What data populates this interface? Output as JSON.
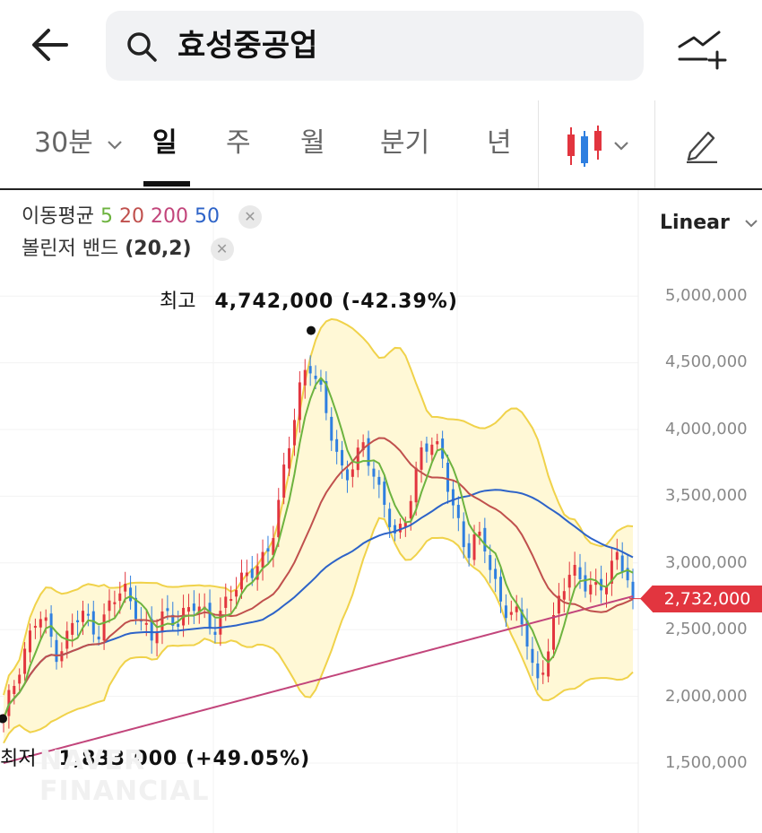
{
  "header": {
    "search_text": "효성중공업"
  },
  "tabs": [
    {
      "label": "30분",
      "has_dropdown": true
    },
    {
      "label": "일",
      "active": true
    },
    {
      "label": "주"
    },
    {
      "label": "월"
    },
    {
      "label": "분기"
    },
    {
      "label": "년"
    }
  ],
  "legend": {
    "ma_label": "이동평균",
    "ma_values": [
      "5",
      "20",
      "200",
      "50"
    ],
    "ma_colors": [
      "#6db33f",
      "#c0504d",
      "#c2457b",
      "#2d63c8"
    ],
    "bb_label": "볼린저 밴드",
    "bb_params": "(20,2)"
  },
  "scale": {
    "label": "Linear"
  },
  "current_price": "2,732,000",
  "annotations": {
    "high_label": "최고",
    "high_value": "4,742,000 (-42.39%)",
    "low_label": "최저",
    "low_value": "1,833,000 (+49.05%)"
  },
  "watermark": [
    "NAVER",
    "FINANCIAL"
  ],
  "chart_data": {
    "type": "candlestick",
    "yscale": "linear",
    "ylim": [
      1300000,
      5200000
    ],
    "y_ticks": [
      "5,000,000",
      "4,500,000",
      "4,000,000",
      "3,500,000",
      "3,000,000",
      "2,500,000",
      "2,000,000",
      "1,500,000"
    ],
    "y_tick_values": [
      5000000,
      4500000,
      4000000,
      3500000,
      3000000,
      2500000,
      2000000,
      1500000
    ],
    "up_color": "#e2353f",
    "down_color": "#2f7fe0",
    "close_path": [
      1830000,
      2050000,
      2300000,
      2450000,
      2600000,
      2500000,
      2350000,
      2400000,
      2550000,
      2600000,
      2550000,
      2500000,
      2650000,
      2750000,
      2800000,
      2700000,
      2500000,
      2400000,
      2600000,
      2650000,
      2550000,
      2600000,
      2700000,
      2650000,
      2500000,
      2600000,
      2750000,
      2900000,
      2950000,
      2950000,
      3000000,
      3300000,
      3700000,
      4000000,
      4300000,
      4500000,
      4400000,
      4100000,
      3800000,
      3600000,
      3800000,
      3900000,
      3700000,
      3500000,
      3400000,
      3200000,
      3300000,
      3600000,
      3900000,
      3950000,
      3800000,
      3500000,
      3300000,
      3100000,
      3200000,
      3100000,
      2900000,
      2700000,
      2650000,
      2550000,
      2400000,
      2100000,
      2300000,
      2550000,
      2800000,
      3000000,
      2900000,
      2800000,
      2750000,
      2900000,
      3100000,
      2950000,
      2732000
    ],
    "high": 4742000,
    "low": 1833000,
    "last": 2732000
  }
}
